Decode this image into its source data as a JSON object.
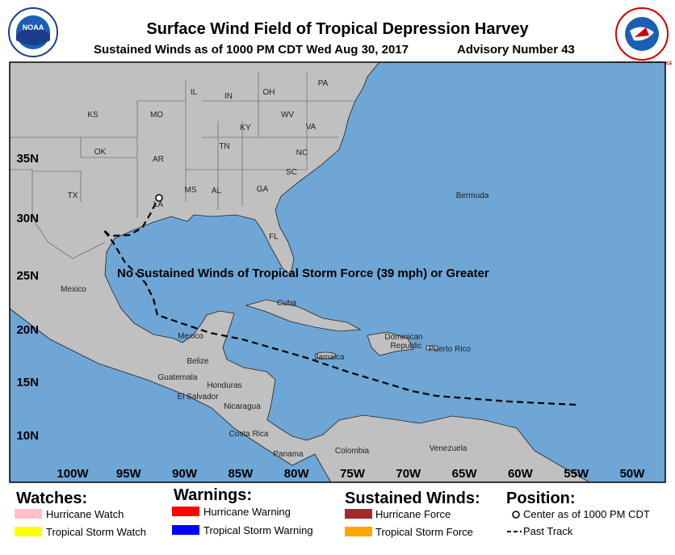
{
  "header": {
    "title": "Surface Wind Field of Tropical Depression Harvey",
    "subtitle": "Sustained Winds as of 1000 PM CDT Wed Aug 30, 2017",
    "advisory": "Advisory Number 43"
  },
  "logos": {
    "noaa": "NOAA",
    "nws": "NATIONAL WEATHER SERVICE"
  },
  "map": {
    "notice": "No Sustained Winds of Tropical Storm Force (39 mph) or Greater",
    "lat_labels": [
      "35N",
      "30N",
      "25N",
      "20N",
      "15N",
      "10N"
    ],
    "lon_labels": [
      "100W",
      "95W",
      "90W",
      "85W",
      "80W",
      "75W",
      "70W",
      "65W",
      "60W",
      "55W",
      "50W"
    ],
    "places": [
      "KS",
      "MO",
      "IL",
      "IN",
      "OH",
      "PA",
      "WV",
      "VA",
      "KY",
      "TN",
      "NC",
      "OK",
      "AR",
      "SC",
      "MS",
      "AL",
      "GA",
      "TX",
      "LA",
      "FL",
      "Bermuda",
      "Mexico",
      "Cuba",
      "Mexico",
      "Belize",
      "Jamaica",
      "Dominican",
      "Republic",
      "Puerto Rico",
      "Guatemala",
      "Honduras",
      "El Salvador",
      "Nicaragua",
      "Costa Rica",
      "Panama",
      "Colombia",
      "Venezuela"
    ]
  },
  "legend": {
    "watches": {
      "title": "Watches:",
      "items": [
        "Hurricane Watch",
        "Tropical Storm Watch"
      ]
    },
    "warnings": {
      "title": "Warnings:",
      "items": [
        "Hurricane Warning",
        "Tropical Storm Warning"
      ]
    },
    "winds": {
      "title": "Sustained Winds:",
      "items": [
        "Hurricane Force",
        "Tropical Storm Force"
      ]
    },
    "position": {
      "title": "Position:",
      "items": [
        "Center as of 1000 PM CDT",
        "Past Track"
      ]
    }
  }
}
